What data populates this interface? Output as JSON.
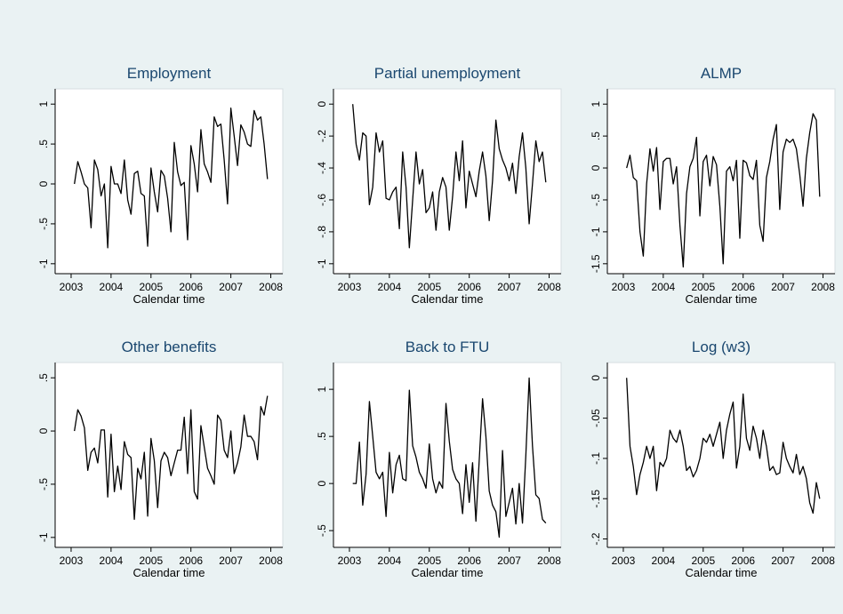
{
  "chart_data": [
    {
      "type": "line",
      "title": "Employment",
      "xlabel": "Calendar time",
      "color": "#000000",
      "xlim": [
        2002.6,
        2008.3
      ],
      "xticks": [
        2003,
        2004,
        2005,
        2006,
        2007,
        2008
      ],
      "ylim": [
        -1.08,
        1.08
      ],
      "yticks": [
        -1,
        {
          "value": -0.5,
          "label": "-.5"
        },
        0,
        {
          "value": 0.5,
          "label": ".5"
        },
        1
      ],
      "x": [
        2003.083,
        2003.167,
        2003.25,
        2003.333,
        2003.417,
        2003.5,
        2003.583,
        2003.667,
        2003.75,
        2003.833,
        2003.917,
        2004,
        2004.083,
        2004.167,
        2004.25,
        2004.333,
        2004.417,
        2004.5,
        2004.583,
        2004.667,
        2004.75,
        2004.833,
        2004.917,
        2005,
        2005.083,
        2005.167,
        2005.25,
        2005.333,
        2005.417,
        2005.5,
        2005.583,
        2005.667,
        2005.75,
        2005.833,
        2005.917,
        2006,
        2006.083,
        2006.167,
        2006.25,
        2006.333,
        2006.417,
        2006.5,
        2006.583,
        2006.667,
        2006.75,
        2006.833,
        2006.917,
        2007,
        2007.083,
        2007.167,
        2007.25,
        2007.333,
        2007.417,
        2007.5,
        2007.583,
        2007.667,
        2007.75,
        2007.833,
        2007.917
      ],
      "values": [
        0,
        0.28,
        0.15,
        0,
        -0.05,
        -0.55,
        0.3,
        0.18,
        -0.15,
        0,
        -0.8,
        0.22,
        0,
        0,
        -0.12,
        0.3,
        -0.2,
        -0.38,
        0.13,
        0.16,
        -0.12,
        -0.15,
        -0.78,
        0.2,
        -0.1,
        -0.35,
        0.17,
        0.1,
        -0.18,
        -0.6,
        0.52,
        0.15,
        -0.02,
        0.02,
        -0.7,
        0.48,
        0.25,
        -0.1,
        0.68,
        0.25,
        0.15,
        0.02,
        0.84,
        0.72,
        0.75,
        0.3,
        -0.25,
        0.95,
        0.6,
        0.23,
        0.74,
        0.65,
        0.5,
        0.47,
        0.92,
        0.8,
        0.84,
        0.5,
        0.06
      ]
    },
    {
      "type": "line",
      "title": "Partial unemployment",
      "xlabel": "Calendar time",
      "color": "#000000",
      "xlim": [
        2002.6,
        2008.3
      ],
      "xticks": [
        2003,
        2004,
        2005,
        2006,
        2007,
        2008
      ],
      "ylim": [
        -1.04,
        0.04
      ],
      "yticks": [
        -1,
        {
          "value": -0.8,
          "label": "-.8"
        },
        {
          "value": -0.6,
          "label": "-.6"
        },
        {
          "value": -0.4,
          "label": "-.4"
        },
        {
          "value": -0.2,
          "label": "-.2"
        },
        0
      ],
      "x": [
        2003.083,
        2003.167,
        2003.25,
        2003.333,
        2003.417,
        2003.5,
        2003.583,
        2003.667,
        2003.75,
        2003.833,
        2003.917,
        2004,
        2004.083,
        2004.167,
        2004.25,
        2004.333,
        2004.417,
        2004.5,
        2004.583,
        2004.667,
        2004.75,
        2004.833,
        2004.917,
        2005,
        2005.083,
        2005.167,
        2005.25,
        2005.333,
        2005.417,
        2005.5,
        2005.583,
        2005.667,
        2005.75,
        2005.833,
        2005.917,
        2006,
        2006.083,
        2006.167,
        2006.25,
        2006.333,
        2006.417,
        2006.5,
        2006.583,
        2006.667,
        2006.75,
        2006.833,
        2006.917,
        2007,
        2007.083,
        2007.167,
        2007.25,
        2007.333,
        2007.417,
        2007.5,
        2007.583,
        2007.667,
        2007.75,
        2007.833,
        2007.917
      ],
      "values": [
        0,
        -0.25,
        -0.35,
        -0.18,
        -0.2,
        -0.63,
        -0.52,
        -0.18,
        -0.3,
        -0.23,
        -0.59,
        -0.6,
        -0.55,
        -0.52,
        -0.78,
        -0.3,
        -0.52,
        -0.9,
        -0.6,
        -0.3,
        -0.5,
        -0.41,
        -0.68,
        -0.65,
        -0.55,
        -0.79,
        -0.55,
        -0.46,
        -0.52,
        -0.79,
        -0.58,
        -0.3,
        -0.48,
        -0.23,
        -0.65,
        -0.42,
        -0.5,
        -0.58,
        -0.42,
        -0.3,
        -0.45,
        -0.73,
        -0.48,
        -0.1,
        -0.28,
        -0.35,
        -0.4,
        -0.48,
        -0.37,
        -0.56,
        -0.33,
        -0.18,
        -0.4,
        -0.75,
        -0.5,
        -0.23,
        -0.36,
        -0.3,
        -0.49
      ]
    },
    {
      "type": "line",
      "title": "ALMP",
      "xlabel": "Calendar time",
      "color": "#000000",
      "xlim": [
        2002.6,
        2008.3
      ],
      "xticks": [
        2003,
        2004,
        2005,
        2006,
        2007,
        2008
      ],
      "ylim": [
        -1.6,
        1.1
      ],
      "yticks": [
        {
          "value": -1.5,
          "label": "-1.5"
        },
        -1,
        {
          "value": -0.5,
          "label": "-.5"
        },
        0,
        {
          "value": 0.5,
          "label": ".5"
        },
        1
      ],
      "x": [
        2003.083,
        2003.167,
        2003.25,
        2003.333,
        2003.417,
        2003.5,
        2003.583,
        2003.667,
        2003.75,
        2003.833,
        2003.917,
        2004,
        2004.083,
        2004.167,
        2004.25,
        2004.333,
        2004.417,
        2004.5,
        2004.583,
        2004.667,
        2004.75,
        2004.833,
        2004.917,
        2005,
        2005.083,
        2005.167,
        2005.25,
        2005.333,
        2005.417,
        2005.5,
        2005.583,
        2005.667,
        2005.75,
        2005.833,
        2005.917,
        2006,
        2006.083,
        2006.167,
        2006.25,
        2006.333,
        2006.417,
        2006.5,
        2006.583,
        2006.667,
        2006.75,
        2006.833,
        2006.917,
        2007,
        2007.083,
        2007.167,
        2007.25,
        2007.333,
        2007.417,
        2007.5,
        2007.583,
        2007.667,
        2007.75,
        2007.833,
        2007.917
      ],
      "values": [
        0,
        0.2,
        -0.15,
        -0.2,
        -1.0,
        -1.38,
        -0.25,
        0.3,
        -0.05,
        0.32,
        -0.65,
        0.1,
        0.15,
        0.15,
        -0.25,
        0.02,
        -0.9,
        -1.55,
        -0.4,
        0.02,
        0.15,
        0.48,
        -0.75,
        0.1,
        0.2,
        -0.28,
        0.18,
        0.05,
        -0.6,
        -1.5,
        -0.05,
        0.02,
        -0.2,
        0.12,
        -1.1,
        0.12,
        0.08,
        -0.12,
        -0.18,
        0.12,
        -0.9,
        -1.15,
        -0.15,
        0.1,
        0.45,
        0.68,
        -0.65,
        0.25,
        0.45,
        0.4,
        0.45,
        0.3,
        -0.1,
        -0.6,
        0.15,
        0.55,
        0.85,
        0.75,
        -0.45
      ]
    },
    {
      "type": "line",
      "title": "Other benefits",
      "xlabel": "Calendar time",
      "color": "#000000",
      "xlim": [
        2002.6,
        2008.3
      ],
      "xticks": [
        2003,
        2004,
        2005,
        2006,
        2007,
        2008
      ],
      "ylim": [
        -1.06,
        0.56
      ],
      "yticks": [
        -1,
        {
          "value": -0.5,
          "label": "-.5"
        },
        0,
        {
          "value": 0.5,
          "label": ".5"
        }
      ],
      "x": [
        2003.083,
        2003.167,
        2003.25,
        2003.333,
        2003.417,
        2003.5,
        2003.583,
        2003.667,
        2003.75,
        2003.833,
        2003.917,
        2004,
        2004.083,
        2004.167,
        2004.25,
        2004.333,
        2004.417,
        2004.5,
        2004.583,
        2004.667,
        2004.75,
        2004.833,
        2004.917,
        2005,
        2005.083,
        2005.167,
        2005.25,
        2005.333,
        2005.417,
        2005.5,
        2005.583,
        2005.667,
        2005.75,
        2005.833,
        2005.917,
        2006,
        2006.083,
        2006.167,
        2006.25,
        2006.333,
        2006.417,
        2006.5,
        2006.583,
        2006.667,
        2006.75,
        2006.833,
        2006.917,
        2007,
        2007.083,
        2007.167,
        2007.25,
        2007.333,
        2007.417,
        2007.5,
        2007.583,
        2007.667,
        2007.75,
        2007.833,
        2007.917
      ],
      "values": [
        0,
        0.2,
        0.14,
        0.03,
        -0.37,
        -0.2,
        -0.16,
        -0.3,
        0.01,
        0.01,
        -0.62,
        -0.03,
        -0.57,
        -0.33,
        -0.55,
        -0.1,
        -0.22,
        -0.25,
        -0.83,
        -0.35,
        -0.45,
        -0.2,
        -0.8,
        -0.07,
        -0.28,
        -0.72,
        -0.28,
        -0.2,
        -0.25,
        -0.42,
        -0.3,
        -0.18,
        -0.18,
        0.13,
        -0.4,
        0.2,
        -0.57,
        -0.64,
        0.05,
        -0.15,
        -0.35,
        -0.42,
        -0.5,
        0.15,
        0.1,
        -0.18,
        -0.25,
        0,
        -0.4,
        -0.3,
        -0.15,
        0.15,
        -0.05,
        -0.05,
        -0.1,
        -0.27,
        0.23,
        0.15,
        0.33
      ]
    },
    {
      "type": "line",
      "title": "Back to FTU",
      "xlabel": "Calendar time",
      "color": "#000000",
      "xlim": [
        2002.6,
        2008.3
      ],
      "xticks": [
        2003,
        2004,
        2005,
        2006,
        2007,
        2008
      ],
      "ylim": [
        -0.64,
        1.19
      ],
      "yticks": [
        {
          "value": -0.5,
          "label": "-.5"
        },
        0,
        {
          "value": 0.5,
          "label": ".5"
        },
        1
      ],
      "x": [
        2003.083,
        2003.167,
        2003.25,
        2003.333,
        2003.417,
        2003.5,
        2003.583,
        2003.667,
        2003.75,
        2003.833,
        2003.917,
        2004,
        2004.083,
        2004.167,
        2004.25,
        2004.333,
        2004.417,
        2004.5,
        2004.583,
        2004.667,
        2004.75,
        2004.833,
        2004.917,
        2005,
        2005.083,
        2005.167,
        2005.25,
        2005.333,
        2005.417,
        2005.5,
        2005.583,
        2005.667,
        2005.75,
        2005.833,
        2005.917,
        2006,
        2006.083,
        2006.167,
        2006.25,
        2006.333,
        2006.417,
        2006.5,
        2006.583,
        2006.667,
        2006.75,
        2006.833,
        2006.917,
        2007,
        2007.083,
        2007.167,
        2007.25,
        2007.333,
        2007.417,
        2007.5,
        2007.583,
        2007.667,
        2007.75,
        2007.833,
        2007.917
      ],
      "values": [
        0,
        0,
        0.44,
        -0.23,
        0.1,
        0.87,
        0.5,
        0.12,
        0.05,
        0.12,
        -0.35,
        0.33,
        -0.1,
        0.2,
        0.3,
        0.05,
        0.03,
        0.99,
        0.4,
        0.28,
        0.12,
        0.05,
        -0.05,
        0.42,
        0.05,
        -0.1,
        0.02,
        -0.05,
        0.85,
        0.45,
        0.15,
        0.05,
        0,
        -0.32,
        0.2,
        -0.2,
        0.22,
        -0.4,
        0.25,
        0.9,
        0.5,
        -0.08,
        -0.23,
        -0.3,
        -0.57,
        0.35,
        -0.35,
        -0.2,
        -0.05,
        -0.43,
        0,
        -0.42,
        0.3,
        1.12,
        0.4,
        -0.12,
        -0.16,
        -0.38,
        -0.42
      ]
    },
    {
      "type": "line",
      "title": "Log (w3)",
      "xlabel": "Calendar time",
      "color": "#000000",
      "xlim": [
        2002.6,
        2008.3
      ],
      "xticks": [
        2003,
        2004,
        2005,
        2006,
        2007,
        2008
      ],
      "ylim": [
        -0.206,
        0.008
      ],
      "yticks": [
        {
          "value": -0.2,
          "label": "-.2"
        },
        {
          "value": -0.15,
          "label": "-.15"
        },
        {
          "value": -0.1,
          "label": "-.1"
        },
        {
          "value": -0.05,
          "label": "-.05"
        },
        0
      ],
      "x": [
        2003.083,
        2003.167,
        2003.25,
        2003.333,
        2003.417,
        2003.5,
        2003.583,
        2003.667,
        2003.75,
        2003.833,
        2003.917,
        2004,
        2004.083,
        2004.167,
        2004.25,
        2004.333,
        2004.417,
        2004.5,
        2004.583,
        2004.667,
        2004.75,
        2004.833,
        2004.917,
        2005,
        2005.083,
        2005.167,
        2005.25,
        2005.333,
        2005.417,
        2005.5,
        2005.583,
        2005.667,
        2005.75,
        2005.833,
        2005.917,
        2006,
        2006.083,
        2006.167,
        2006.25,
        2006.333,
        2006.417,
        2006.5,
        2006.583,
        2006.667,
        2006.75,
        2006.833,
        2006.917,
        2007,
        2007.083,
        2007.167,
        2007.25,
        2007.333,
        2007.417,
        2007.5,
        2007.583,
        2007.667,
        2007.75,
        2007.833,
        2007.917
      ],
      "values": [
        0,
        -0.085,
        -0.11,
        -0.145,
        -0.12,
        -0.105,
        -0.085,
        -0.1,
        -0.085,
        -0.14,
        -0.105,
        -0.11,
        -0.1,
        -0.065,
        -0.075,
        -0.08,
        -0.065,
        -0.085,
        -0.115,
        -0.11,
        -0.123,
        -0.115,
        -0.1,
        -0.075,
        -0.08,
        -0.07,
        -0.085,
        -0.07,
        -0.055,
        -0.1,
        -0.065,
        -0.045,
        -0.03,
        -0.112,
        -0.085,
        -0.02,
        -0.075,
        -0.09,
        -0.06,
        -0.075,
        -0.1,
        -0.065,
        -0.085,
        -0.115,
        -0.11,
        -0.12,
        -0.118,
        -0.08,
        -0.1,
        -0.11,
        -0.118,
        -0.095,
        -0.12,
        -0.11,
        -0.125,
        -0.155,
        -0.168,
        -0.13,
        -0.15
      ]
    }
  ]
}
